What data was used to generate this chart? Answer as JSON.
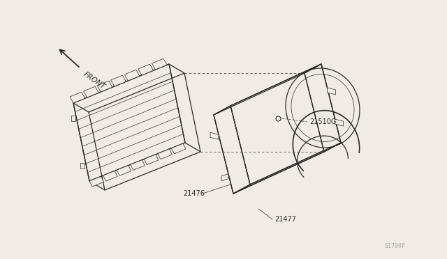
{
  "bg_color": "#f0ebe4",
  "line_color": "#2a2a2a",
  "parts": {
    "21476": "21476",
    "21477": "21477",
    "21510G": "21510G"
  },
  "front_label": "FRONT",
  "page_num": "S1700P"
}
